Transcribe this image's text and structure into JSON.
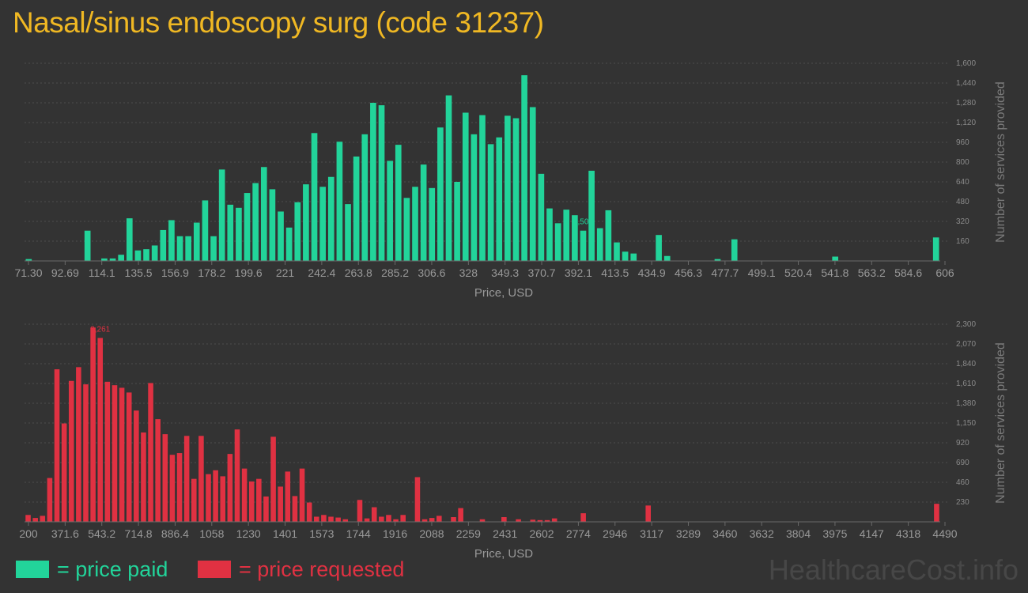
{
  "title": "Nasal/sinus endoscopy surg (code 31237)",
  "watermark": "HealthcareCost.info",
  "legend": [
    {
      "label": "= price paid",
      "color": "#22d49a"
    },
    {
      "label": "= price requested",
      "color": "#e03142"
    }
  ],
  "chart_data": [
    {
      "type": "bar",
      "xlabel": "Price, USD",
      "ylabel": "Number of services provided",
      "color": "#22d49a",
      "ylim": [
        0,
        1600
      ],
      "yticks": [
        160,
        320,
        480,
        640,
        800,
        960,
        1120,
        1280,
        1440,
        1600
      ],
      "ytick_labels": [
        "160",
        "320",
        "480",
        "640",
        "800",
        "960",
        "1,120",
        "1,280",
        "1,440",
        "1,600"
      ],
      "xticks": [
        "71.30",
        "92.69",
        "114.1",
        "135.5",
        "156.9",
        "178.2",
        "199.6",
        "221",
        "242.4",
        "263.8",
        "285.2",
        "306.6",
        "328",
        "349.3",
        "370.7",
        "392.1",
        "413.5",
        "434.9",
        "456.3",
        "477.7",
        "499.1",
        "520.4",
        "541.8",
        "563.2",
        "584.6",
        "606"
      ],
      "xlim": [
        71.3,
        606
      ],
      "annotation": {
        "label": "1,503",
        "index": 66
      },
      "values": [
        15,
        0,
        0,
        0,
        0,
        0,
        0,
        245,
        0,
        20,
        20,
        50,
        345,
        85,
        95,
        125,
        250,
        330,
        200,
        200,
        310,
        490,
        200,
        740,
        455,
        430,
        550,
        630,
        760,
        580,
        400,
        270,
        475,
        620,
        1035,
        600,
        680,
        965,
        460,
        845,
        1025,
        1280,
        1260,
        810,
        940,
        510,
        600,
        780,
        590,
        1080,
        1340,
        640,
        1200,
        1025,
        1180,
        945,
        1000,
        1175,
        1155,
        1503,
        1245,
        705,
        425,
        305,
        415,
        370,
        245,
        730,
        265,
        410,
        150,
        75,
        60,
        0,
        0,
        210,
        40,
        0,
        0,
        0,
        0,
        0,
        15,
        0,
        175,
        0,
        0,
        0,
        0,
        0,
        0,
        0,
        0,
        0,
        0,
        0,
        35,
        0,
        0,
        0,
        0,
        0,
        0,
        0,
        0,
        0,
        0,
        0,
        190
      ]
    },
    {
      "type": "bar",
      "xlabel": "Price, USD",
      "ylabel": "Number of services provided",
      "color": "#e03142",
      "ylim": [
        0,
        2300
      ],
      "yticks": [
        230,
        460,
        690,
        920,
        1150,
        1380,
        1610,
        1840,
        2070,
        2300
      ],
      "ytick_labels": [
        "230",
        "460",
        "690",
        "920",
        "1,150",
        "1,380",
        "1,610",
        "1,840",
        "2,070",
        "2,300"
      ],
      "xticks": [
        "200",
        "371.6",
        "543.2",
        "714.8",
        "886.4",
        "1058",
        "1230",
        "1401",
        "1573",
        "1744",
        "1916",
        "2088",
        "2259",
        "2431",
        "2602",
        "2774",
        "2946",
        "3117",
        "3289",
        "3460",
        "3632",
        "3804",
        "3975",
        "4147",
        "4318",
        "4490"
      ],
      "xlim": [
        200,
        4490
      ],
      "annotation": {
        "label": "2,261",
        "index": 10
      },
      "values": [
        80,
        45,
        70,
        510,
        1775,
        1145,
        1640,
        1800,
        1600,
        2261,
        2140,
        1630,
        1590,
        1560,
        1505,
        1295,
        1040,
        1615,
        1195,
        1020,
        780,
        800,
        1000,
        500,
        1000,
        555,
        600,
        530,
        790,
        1075,
        620,
        470,
        500,
        295,
        990,
        410,
        585,
        300,
        620,
        225,
        60,
        80,
        60,
        50,
        30,
        0,
        255,
        40,
        170,
        60,
        80,
        30,
        80,
        0,
        520,
        30,
        45,
        70,
        0,
        55,
        160,
        0,
        0,
        30,
        0,
        0,
        55,
        0,
        30,
        0,
        25,
        20,
        20,
        40,
        0,
        0,
        0,
        100,
        0,
        0,
        0,
        0,
        0,
        0,
        0,
        0,
        190,
        0,
        0,
        0,
        0,
        0,
        0,
        0,
        0,
        0,
        0,
        0,
        0,
        0,
        0,
        0,
        0,
        0,
        0,
        0,
        0,
        0,
        0,
        0,
        0,
        0,
        0,
        0,
        0,
        0,
        0,
        0,
        0,
        0,
        0,
        0,
        0,
        0,
        0,
        0,
        210
      ]
    }
  ]
}
